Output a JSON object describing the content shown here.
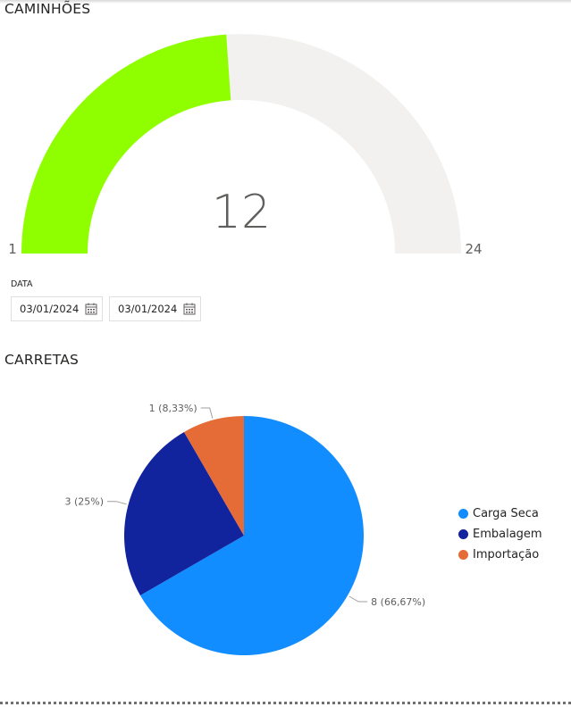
{
  "colors": {
    "gauge_fill": "#8fff00",
    "gauge_track": "#f2f1ef",
    "carga_seca": "#118dff",
    "embalagem": "#12239e",
    "importacao": "#e66c37"
  },
  "gauge": {
    "title": "CAMINHÕES",
    "value": "12",
    "min": "1",
    "max": "24"
  },
  "slicer": {
    "label": "DATA",
    "start_date": "03/01/2024",
    "end_date": "03/01/2024",
    "icon": "calendar-icon"
  },
  "pie": {
    "title": "CARRETAS"
  },
  "chart_data": [
    {
      "type": "gauge",
      "title": "CAMINHÕES",
      "value": 12,
      "min": 1,
      "max": 24
    },
    {
      "type": "pie",
      "title": "CARRETAS",
      "categories": [
        "Carga Seca",
        "Embalagem",
        "Importação"
      ],
      "values": [
        8,
        3,
        1
      ],
      "data_labels": [
        "8 (66,67%)",
        "3 (25%)",
        "1 (8,33%)"
      ],
      "legend_position": "right"
    }
  ]
}
